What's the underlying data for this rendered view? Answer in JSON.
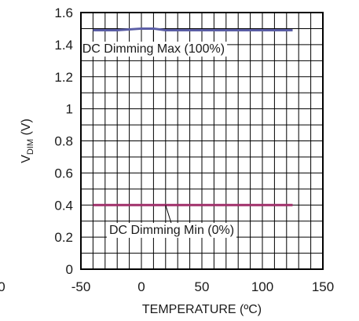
{
  "chart_data": {
    "type": "line",
    "xlabel": "TEMPERATURE (ºC)",
    "ylabel": {
      "main": "V",
      "sub": "DIM",
      "unit": " (V)"
    },
    "xlim": [
      -50,
      150
    ],
    "ylim": [
      0,
      1.6
    ],
    "xticks": [
      -50,
      0,
      50,
      100,
      150
    ],
    "xtick_labels": [
      "-50",
      "0",
      "50",
      "100",
      "150"
    ],
    "yticks": [
      0,
      0.2,
      0.4,
      0.6,
      0.8,
      1.0,
      1.2,
      1.4,
      1.6
    ],
    "ytick_labels": [
      "0",
      "0.2",
      "0.4",
      "0.6",
      "0.8",
      "1",
      "1.2",
      "1.4",
      "1.6"
    ],
    "grid": true,
    "series": [
      {
        "color": "#5b5ea6",
        "x": [
          -40,
          -20,
          0,
          10,
          20,
          40,
          60,
          80,
          100,
          125
        ],
        "y": [
          1.49,
          1.49,
          1.5,
          1.5,
          1.49,
          1.49,
          1.49,
          1.49,
          1.49,
          1.49
        ]
      },
      {
        "color": "#a0306a",
        "x": [
          -40,
          0,
          40,
          80,
          125
        ],
        "y": [
          0.4,
          0.4,
          0.4,
          0.4,
          0.4
        ]
      }
    ],
    "annotations": [
      {
        "text": "DC Dimming Max (100%)",
        "target": [
          10,
          1.49
        ],
        "anchor": [
          10,
          1.35
        ]
      },
      {
        "text": "DC Dimming Min (0%)",
        "target": [
          20,
          0.4
        ],
        "anchor": [
          25,
          0.22
        ]
      }
    ],
    "left_partial_label": "0"
  }
}
